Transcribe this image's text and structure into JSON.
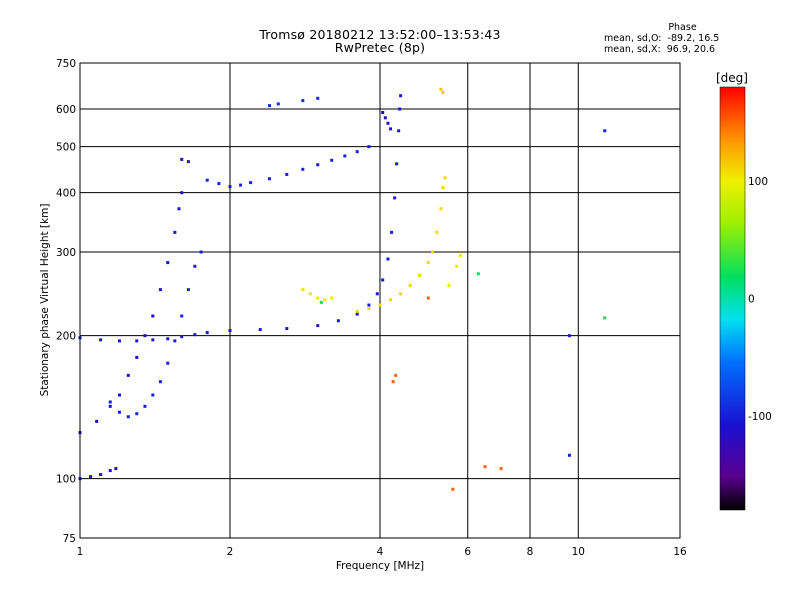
{
  "header": {
    "title_line1": "Tromsø 20180212 13:52:00–13:53:43",
    "title_line2": "RwPretec (8p)"
  },
  "phase_stats": {
    "heading": "Phase",
    "line_o": "mean, sd,O:  -89.2, 16.5",
    "line_x": "mean, sd,X:  96.9, 20.6"
  },
  "colorbar": {
    "label": "[deg]",
    "ticks": [
      "100",
      "0",
      "-100"
    ],
    "tick_values": [
      100,
      0,
      -100
    ],
    "range": [
      -180,
      180
    ]
  },
  "chart_data": {
    "type": "scatter",
    "xlabel": "Frequency [MHz]",
    "ylabel": "Stationary phase Virtual Height [km]",
    "x_scale": "log",
    "y_scale": "log",
    "xlim": [
      1,
      16
    ],
    "ylim": [
      75,
      750
    ],
    "grid": true,
    "x_ticks": [
      1,
      2,
      4,
      6,
      8,
      10,
      16
    ],
    "x_tick_labels": [
      "1",
      "2",
      "4",
      "6",
      "8",
      "10",
      "16"
    ],
    "x_grid": [
      2,
      4,
      6,
      8,
      10
    ],
    "y_ticks": [
      75,
      100,
      200,
      300,
      400,
      500,
      600,
      750
    ],
    "y_tick_labels": [
      "75",
      "100",
      "200",
      "300",
      "400",
      "500",
      "600",
      "750"
    ],
    "y_grid": [
      100,
      200,
      300,
      400,
      500,
      600
    ],
    "color_scale": "phase in degrees, -180 (black/purple) to 180 (red)",
    "traces": [
      {
        "name": "",
        "phase": -110,
        "points": [
          [
            1.0,
            100
          ],
          [
            1.05,
            101
          ],
          [
            1.1,
            102
          ],
          [
            1.15,
            104
          ],
          [
            1.18,
            105
          ]
        ]
      },
      {
        "name": "",
        "phase": -105,
        "points": [
          [
            1.0,
            198
          ],
          [
            1.1,
            196
          ],
          [
            1.2,
            195
          ],
          [
            1.3,
            195
          ],
          [
            1.4,
            196
          ],
          [
            1.5,
            197
          ],
          [
            1.6,
            199
          ],
          [
            1.7,
            201
          ],
          [
            1.8,
            203
          ],
          [
            2.0,
            205
          ],
          [
            2.3,
            206
          ],
          [
            2.6,
            207
          ],
          [
            3.0,
            210
          ],
          [
            3.3,
            215
          ],
          [
            3.6,
            222
          ],
          [
            3.8,
            232
          ],
          [
            3.95,
            245
          ],
          [
            4.05,
            262
          ],
          [
            4.15,
            290
          ],
          [
            4.22,
            330
          ],
          [
            4.28,
            390
          ],
          [
            4.32,
            460
          ],
          [
            4.36,
            540
          ],
          [
            4.38,
            600
          ],
          [
            4.4,
            640
          ]
        ]
      },
      {
        "name": "",
        "phase": -110,
        "points": [
          [
            1.0,
            125
          ],
          [
            1.08,
            132
          ],
          [
            1.15,
            142
          ],
          [
            1.2,
            150
          ],
          [
            1.25,
            165
          ],
          [
            1.3,
            180
          ],
          [
            1.35,
            200
          ],
          [
            1.4,
            220
          ],
          [
            1.45,
            250
          ],
          [
            1.5,
            285
          ],
          [
            1.55,
            330
          ],
          [
            1.58,
            370
          ],
          [
            1.6,
            400
          ]
        ]
      },
      {
        "name": "",
        "phase": -100,
        "points": [
          [
            1.15,
            145
          ],
          [
            1.2,
            138
          ],
          [
            1.25,
            135
          ],
          [
            1.3,
            137
          ],
          [
            1.35,
            142
          ],
          [
            1.4,
            150
          ],
          [
            1.45,
            160
          ],
          [
            1.5,
            175
          ],
          [
            1.55,
            195
          ],
          [
            1.6,
            220
          ],
          [
            1.65,
            250
          ],
          [
            1.7,
            280
          ],
          [
            1.75,
            300
          ]
        ]
      },
      {
        "name": "",
        "phase": -115,
        "points": [
          [
            1.6,
            470
          ],
          [
            1.65,
            465
          ]
        ]
      },
      {
        "name": "",
        "phase": -100,
        "points": [
          [
            1.8,
            425
          ],
          [
            1.9,
            418
          ],
          [
            2.0,
            412
          ],
          [
            2.1,
            415
          ],
          [
            2.2,
            420
          ],
          [
            2.4,
            428
          ],
          [
            2.6,
            437
          ],
          [
            2.8,
            448
          ],
          [
            3.0,
            458
          ],
          [
            3.2,
            468
          ],
          [
            3.4,
            478
          ],
          [
            3.6,
            488
          ],
          [
            3.8,
            500
          ]
        ]
      },
      {
        "name": "",
        "phase": -95,
        "points": [
          [
            2.4,
            610
          ],
          [
            2.5,
            615
          ],
          [
            2.8,
            625
          ],
          [
            3.0,
            632
          ]
        ]
      },
      {
        "name": "",
        "phase": -115,
        "points": [
          [
            4.05,
            590
          ],
          [
            4.1,
            575
          ],
          [
            4.15,
            560
          ],
          [
            4.2,
            545
          ]
        ]
      },
      {
        "name": "",
        "phase": 105,
        "points": [
          [
            2.8,
            250
          ],
          [
            2.9,
            245
          ],
          [
            3.0,
            240
          ],
          [
            3.1,
            238
          ],
          [
            3.2,
            240
          ]
        ]
      },
      {
        "name": "",
        "phase": 110,
        "points": [
          [
            3.6,
            225
          ],
          [
            3.8,
            228
          ],
          [
            4.0,
            232
          ],
          [
            4.2,
            238
          ],
          [
            4.4,
            245
          ],
          [
            4.6,
            255
          ],
          [
            4.8,
            268
          ],
          [
            5.0,
            285
          ],
          [
            5.1,
            300
          ],
          [
            5.2,
            330
          ],
          [
            5.3,
            370
          ],
          [
            5.35,
            410
          ],
          [
            5.4,
            430
          ]
        ]
      },
      {
        "name": "",
        "phase": 115,
        "points": [
          [
            5.3,
            660
          ],
          [
            5.35,
            650
          ]
        ]
      },
      {
        "name": "",
        "phase": 95,
        "points": [
          [
            5.5,
            255
          ],
          [
            5.7,
            280
          ],
          [
            5.8,
            295
          ]
        ]
      },
      {
        "name": "",
        "phase": -100,
        "points": [
          [
            9.6,
            200
          ],
          [
            9.6,
            112
          ],
          [
            11.3,
            540
          ]
        ]
      },
      {
        "name": "",
        "phase": 20,
        "points": [
          [
            11.3,
            218
          ],
          [
            6.3,
            270
          ],
          [
            3.05,
            235
          ]
        ]
      },
      {
        "name": "",
        "phase": 150,
        "points": [
          [
            4.25,
            160
          ],
          [
            4.3,
            165
          ],
          [
            5.6,
            95
          ],
          [
            6.5,
            106
          ],
          [
            7.0,
            105
          ],
          [
            5.0,
            240
          ]
        ]
      }
    ]
  }
}
